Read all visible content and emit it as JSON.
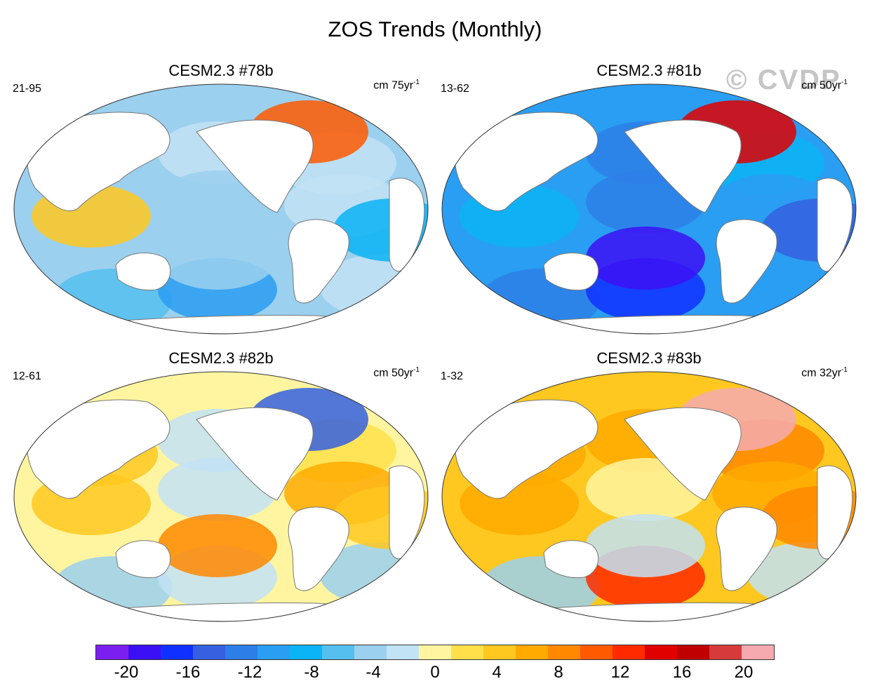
{
  "title": "ZOS Trends (Monthly)",
  "watermark": "© CVDP",
  "panels": [
    {
      "title": "CESM2.3 #78b",
      "left_label": "21-95",
      "unit_prefix": "cm 75yr",
      "unit_sup": "-1",
      "field": [
        -5,
        -3,
        -4,
        2,
        -5,
        -3,
        -8,
        -12,
        9,
        -6,
        -4,
        -10
      ]
    },
    {
      "title": "CESM2.3 #81b",
      "left_label": "13-62",
      "unit_prefix": "cm 50yr",
      "unit_sup": "-1",
      "field": [
        -12,
        -14,
        -10,
        -9,
        -13,
        -11,
        -14,
        -18,
        12,
        -20,
        -12,
        -16
      ]
    },
    {
      "title": "CESM2.3 #82b",
      "left_label": "12-61",
      "unit_prefix": "cm 50yr",
      "unit_sup": "-1",
      "field": [
        2,
        -3,
        1,
        3,
        -4,
        4,
        -6,
        -3,
        -16,
        6,
        -5,
        3
      ]
    },
    {
      "title": "CESM2.3 #83b",
      "left_label": "1-32",
      "unit_prefix": "cm 32yr",
      "unit_sup": "-1",
      "field": [
        5,
        4,
        6,
        5,
        -2,
        4,
        -5,
        10,
        20,
        -4,
        -3,
        6
      ]
    }
  ],
  "colorbar": {
    "colors": [
      "#7a1ff0",
      "#3c10f5",
      "#1030ff",
      "#3560e0",
      "#2d7fe8",
      "#2a9ef2",
      "#0ab4f5",
      "#55c0ef",
      "#9bd0ee",
      "#c2e2f5",
      "#fff5a0",
      "#ffe04a",
      "#ffc820",
      "#ffaa00",
      "#ff8800",
      "#ff5a00",
      "#ff2a00",
      "#e00000",
      "#c00000",
      "#d63a3a",
      "#f5aab0"
    ],
    "tick_labels": [
      "-20",
      "-16",
      "-12",
      "-8",
      "-4",
      "0",
      "4",
      "8",
      "12",
      "16",
      "20"
    ],
    "tick_values": [
      -20,
      -16,
      -12,
      -8,
      -4,
      0,
      4,
      8,
      12,
      16,
      20
    ],
    "min": -22,
    "max": 22
  }
}
